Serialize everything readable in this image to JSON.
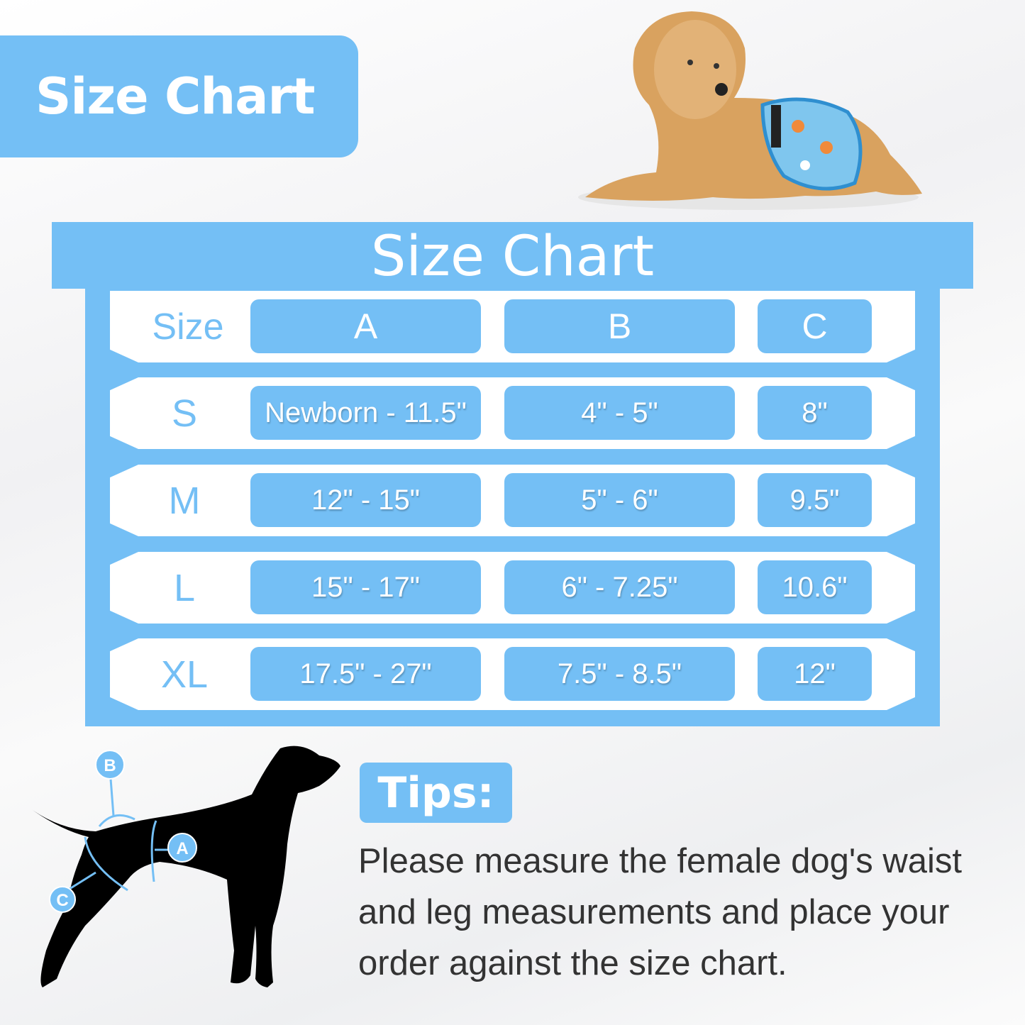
{
  "top_label": "Size Chart",
  "banner_title": "Size Chart",
  "colors": {
    "accent": "#74bff5",
    "text": "#333333"
  },
  "table": {
    "header": {
      "size": "Size",
      "a": "A",
      "b": "B",
      "c": "C"
    },
    "rows": [
      {
        "size": "S",
        "a": "Newborn - 11.5\"",
        "b": "4\" - 5\"",
        "c": "8\""
      },
      {
        "size": "M",
        "a": "12\" - 15\"",
        "b": "5\" - 6\"",
        "c": "9.5\""
      },
      {
        "size": "L",
        "a": "15\" - 17\"",
        "b": "6\" - 7.25\"",
        "c": "10.6\""
      },
      {
        "size": "XL",
        "a": "17.5\" - 27\"",
        "b": "7.5\" - 8.5\"",
        "c": "12\""
      }
    ]
  },
  "diagram": {
    "markers": [
      "A",
      "B",
      "C"
    ]
  },
  "tips": {
    "label": "Tips:",
    "text": "Please measure the female dog's waist and leg measurements and place your order against the size chart."
  }
}
